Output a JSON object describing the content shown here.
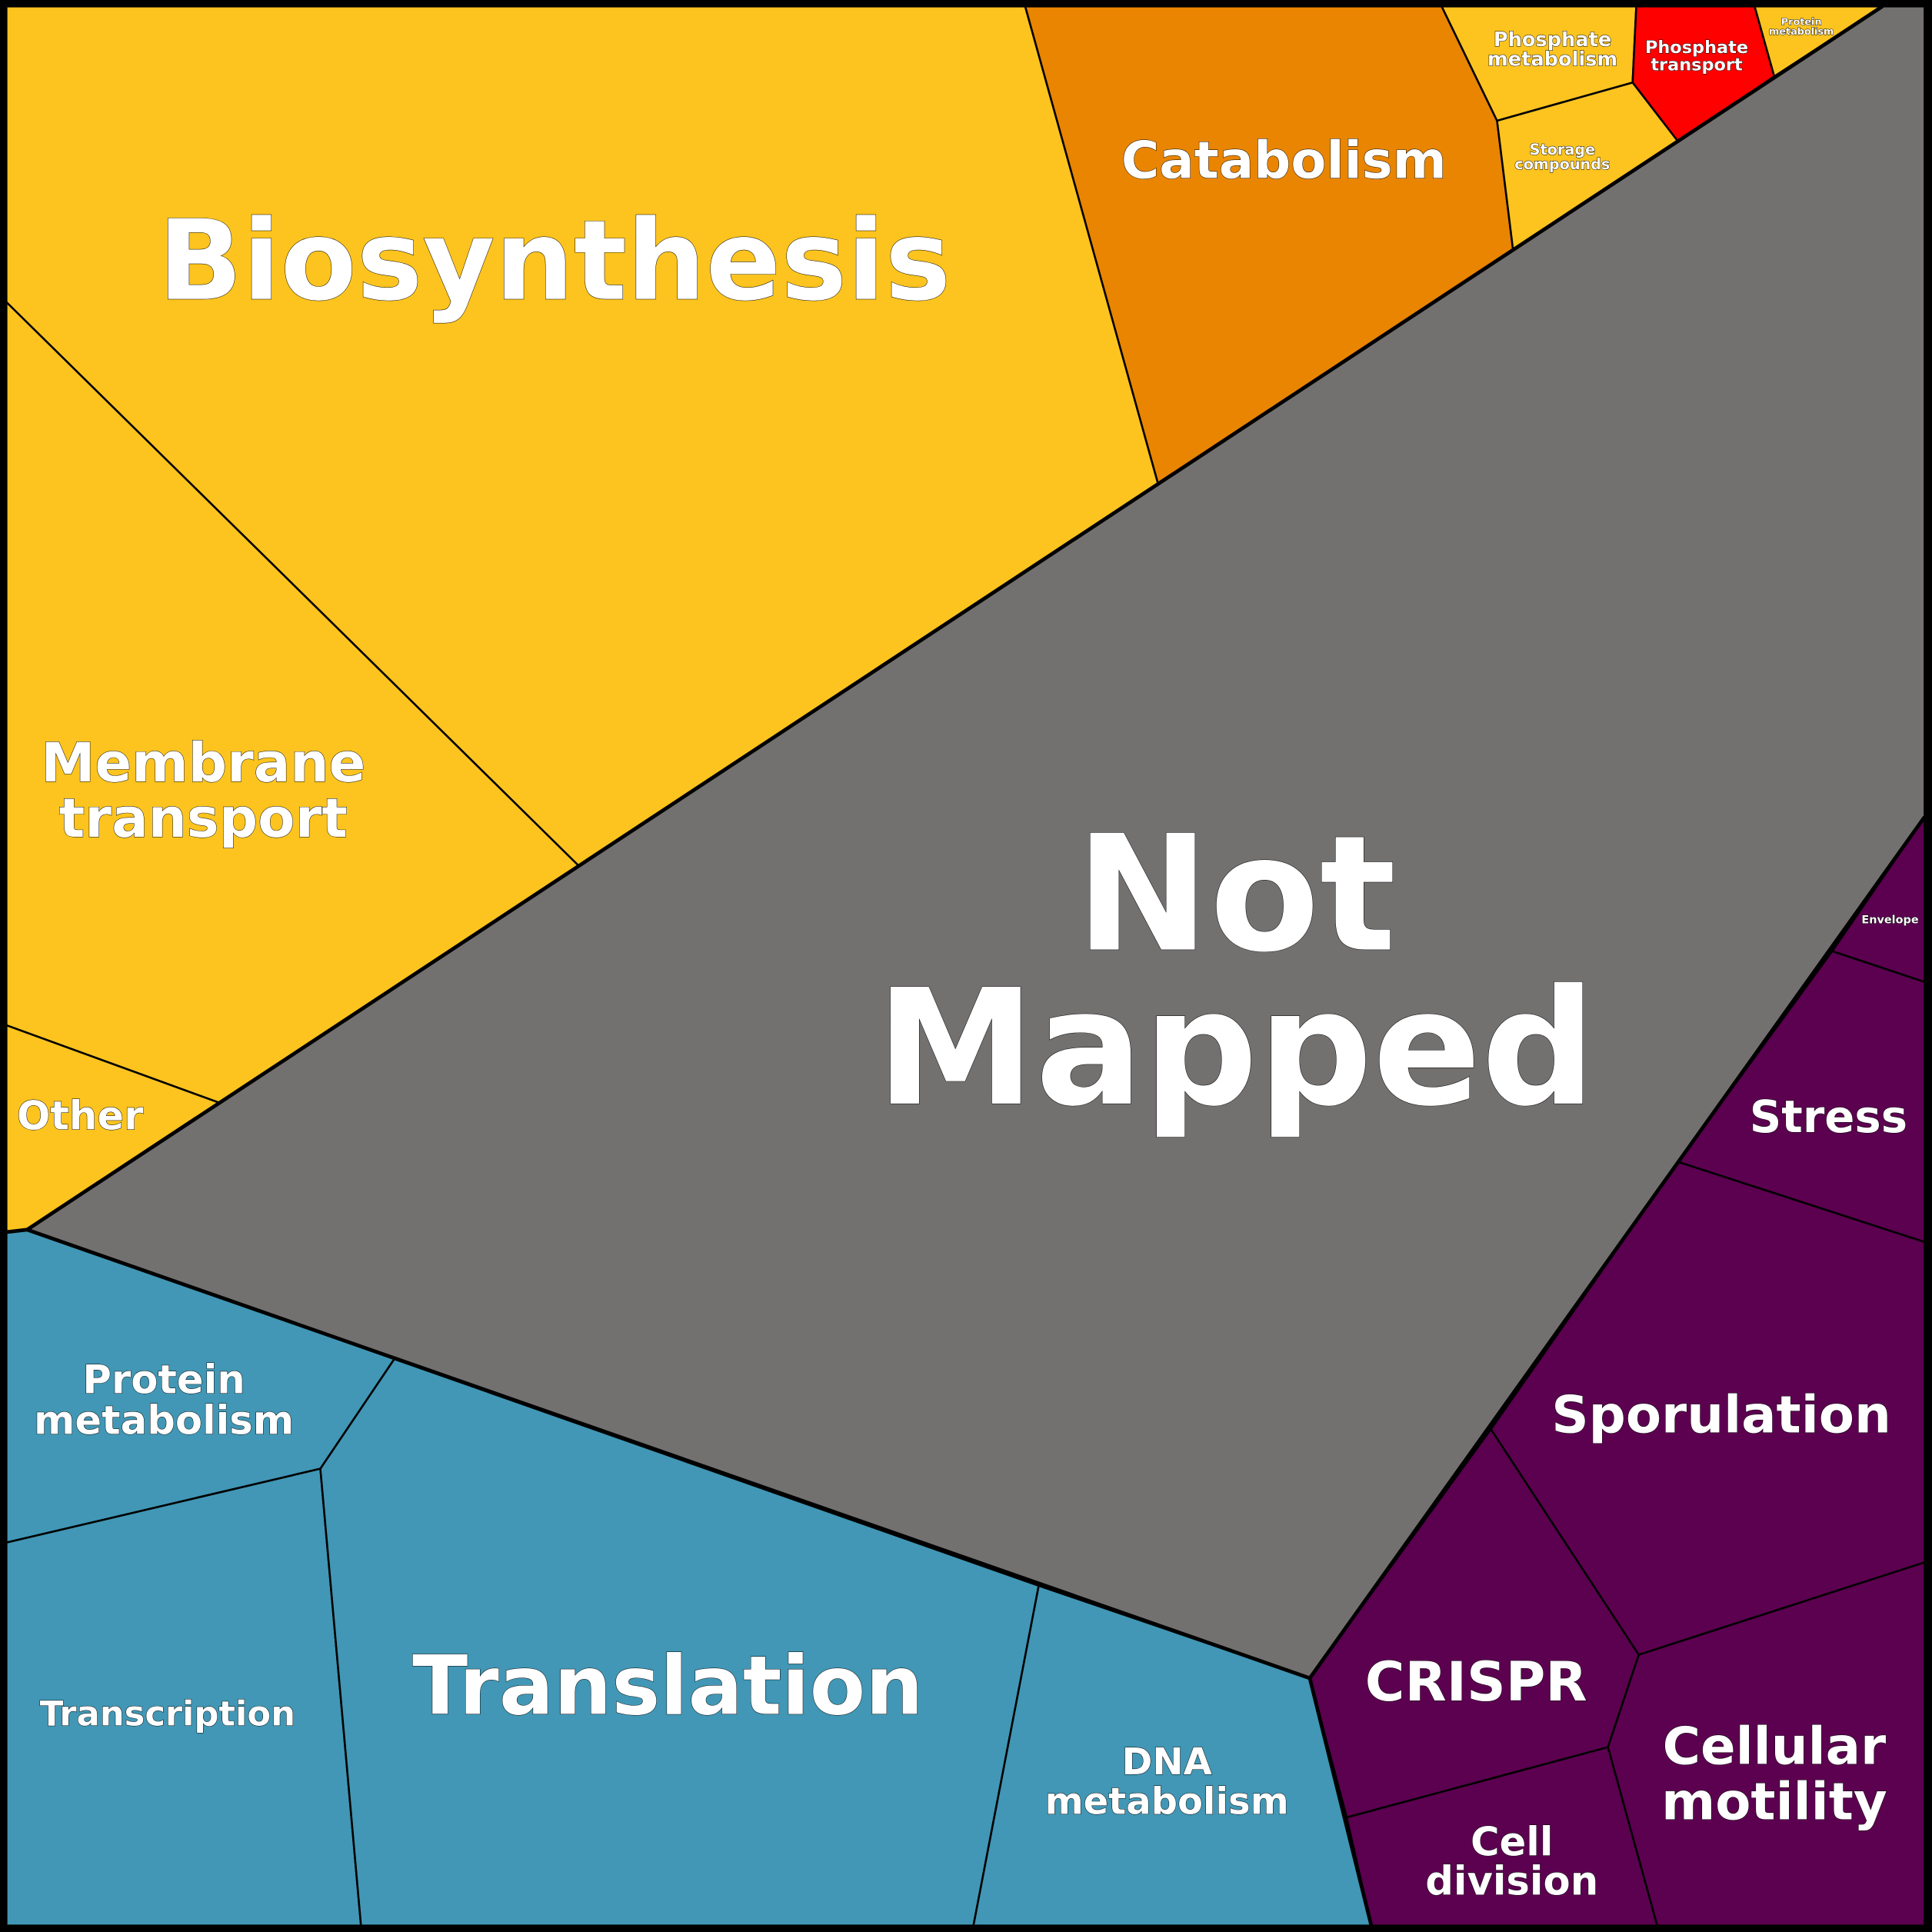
{
  "regions": [
    {
      "lines": [
        "Biosynthesis"
      ]
    },
    {
      "lines": [
        "Catabolism"
      ]
    },
    {
      "lines": [
        "Phosphate",
        "metabolism"
      ]
    },
    {
      "lines": [
        "Phosphate",
        "transport"
      ]
    },
    {
      "lines": [
        "Protein",
        "metabolism"
      ]
    },
    {
      "lines": [
        "Storage",
        "compounds"
      ]
    },
    {
      "lines": [
        "Membrane",
        "transport"
      ]
    },
    {
      "lines": [
        "Other"
      ]
    },
    {
      "lines": [
        "Not",
        "Mapped"
      ]
    },
    {
      "lines": [
        "Envelope"
      ]
    },
    {
      "lines": [
        "Stress"
      ]
    },
    {
      "lines": [
        "Sporulation"
      ]
    },
    {
      "lines": [
        "Protein",
        "metabolism"
      ]
    },
    {
      "lines": [
        "Transcription"
      ]
    },
    {
      "lines": [
        "Translation"
      ]
    },
    {
      "lines": [
        "DNA",
        "metabolism"
      ]
    },
    {
      "lines": [
        "CRISPR"
      ]
    },
    {
      "lines": [
        "Cellular",
        "motility"
      ]
    },
    {
      "lines": [
        "Cell",
        "division"
      ]
    }
  ]
}
